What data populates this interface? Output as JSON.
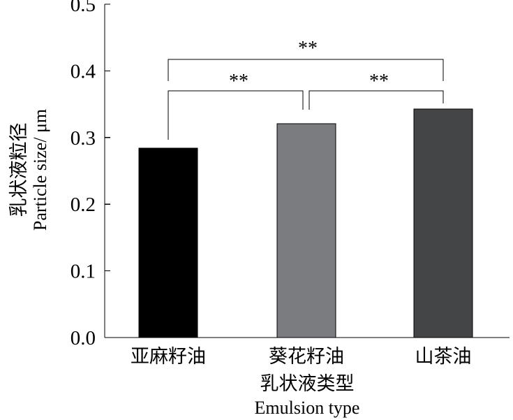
{
  "chart_data": {
    "type": "bar",
    "categories": [
      "亚麻籽油",
      "葵花籽油",
      "山茶油"
    ],
    "values": [
      0.284,
      0.321,
      0.343
    ],
    "bar_colors": [
      "#000000",
      "#7b7c80",
      "#444547"
    ],
    "ylim": [
      0,
      0.5
    ],
    "yticks": [
      "0.0",
      "0.1",
      "0.2",
      "0.3",
      "0.4",
      "0.5"
    ],
    "ylabel_cn": "乳状液粒径",
    "ylabel_en": "Particle size/ μm",
    "xlabel_cn": "乳状液类型",
    "xlabel_en": "Emulsion type",
    "grid": false,
    "significance": [
      {
        "from": 0,
        "to": 1,
        "label": "**"
      },
      {
        "from": 1,
        "to": 2,
        "label": "**"
      },
      {
        "from": 0,
        "to": 2,
        "label": "**"
      }
    ]
  }
}
